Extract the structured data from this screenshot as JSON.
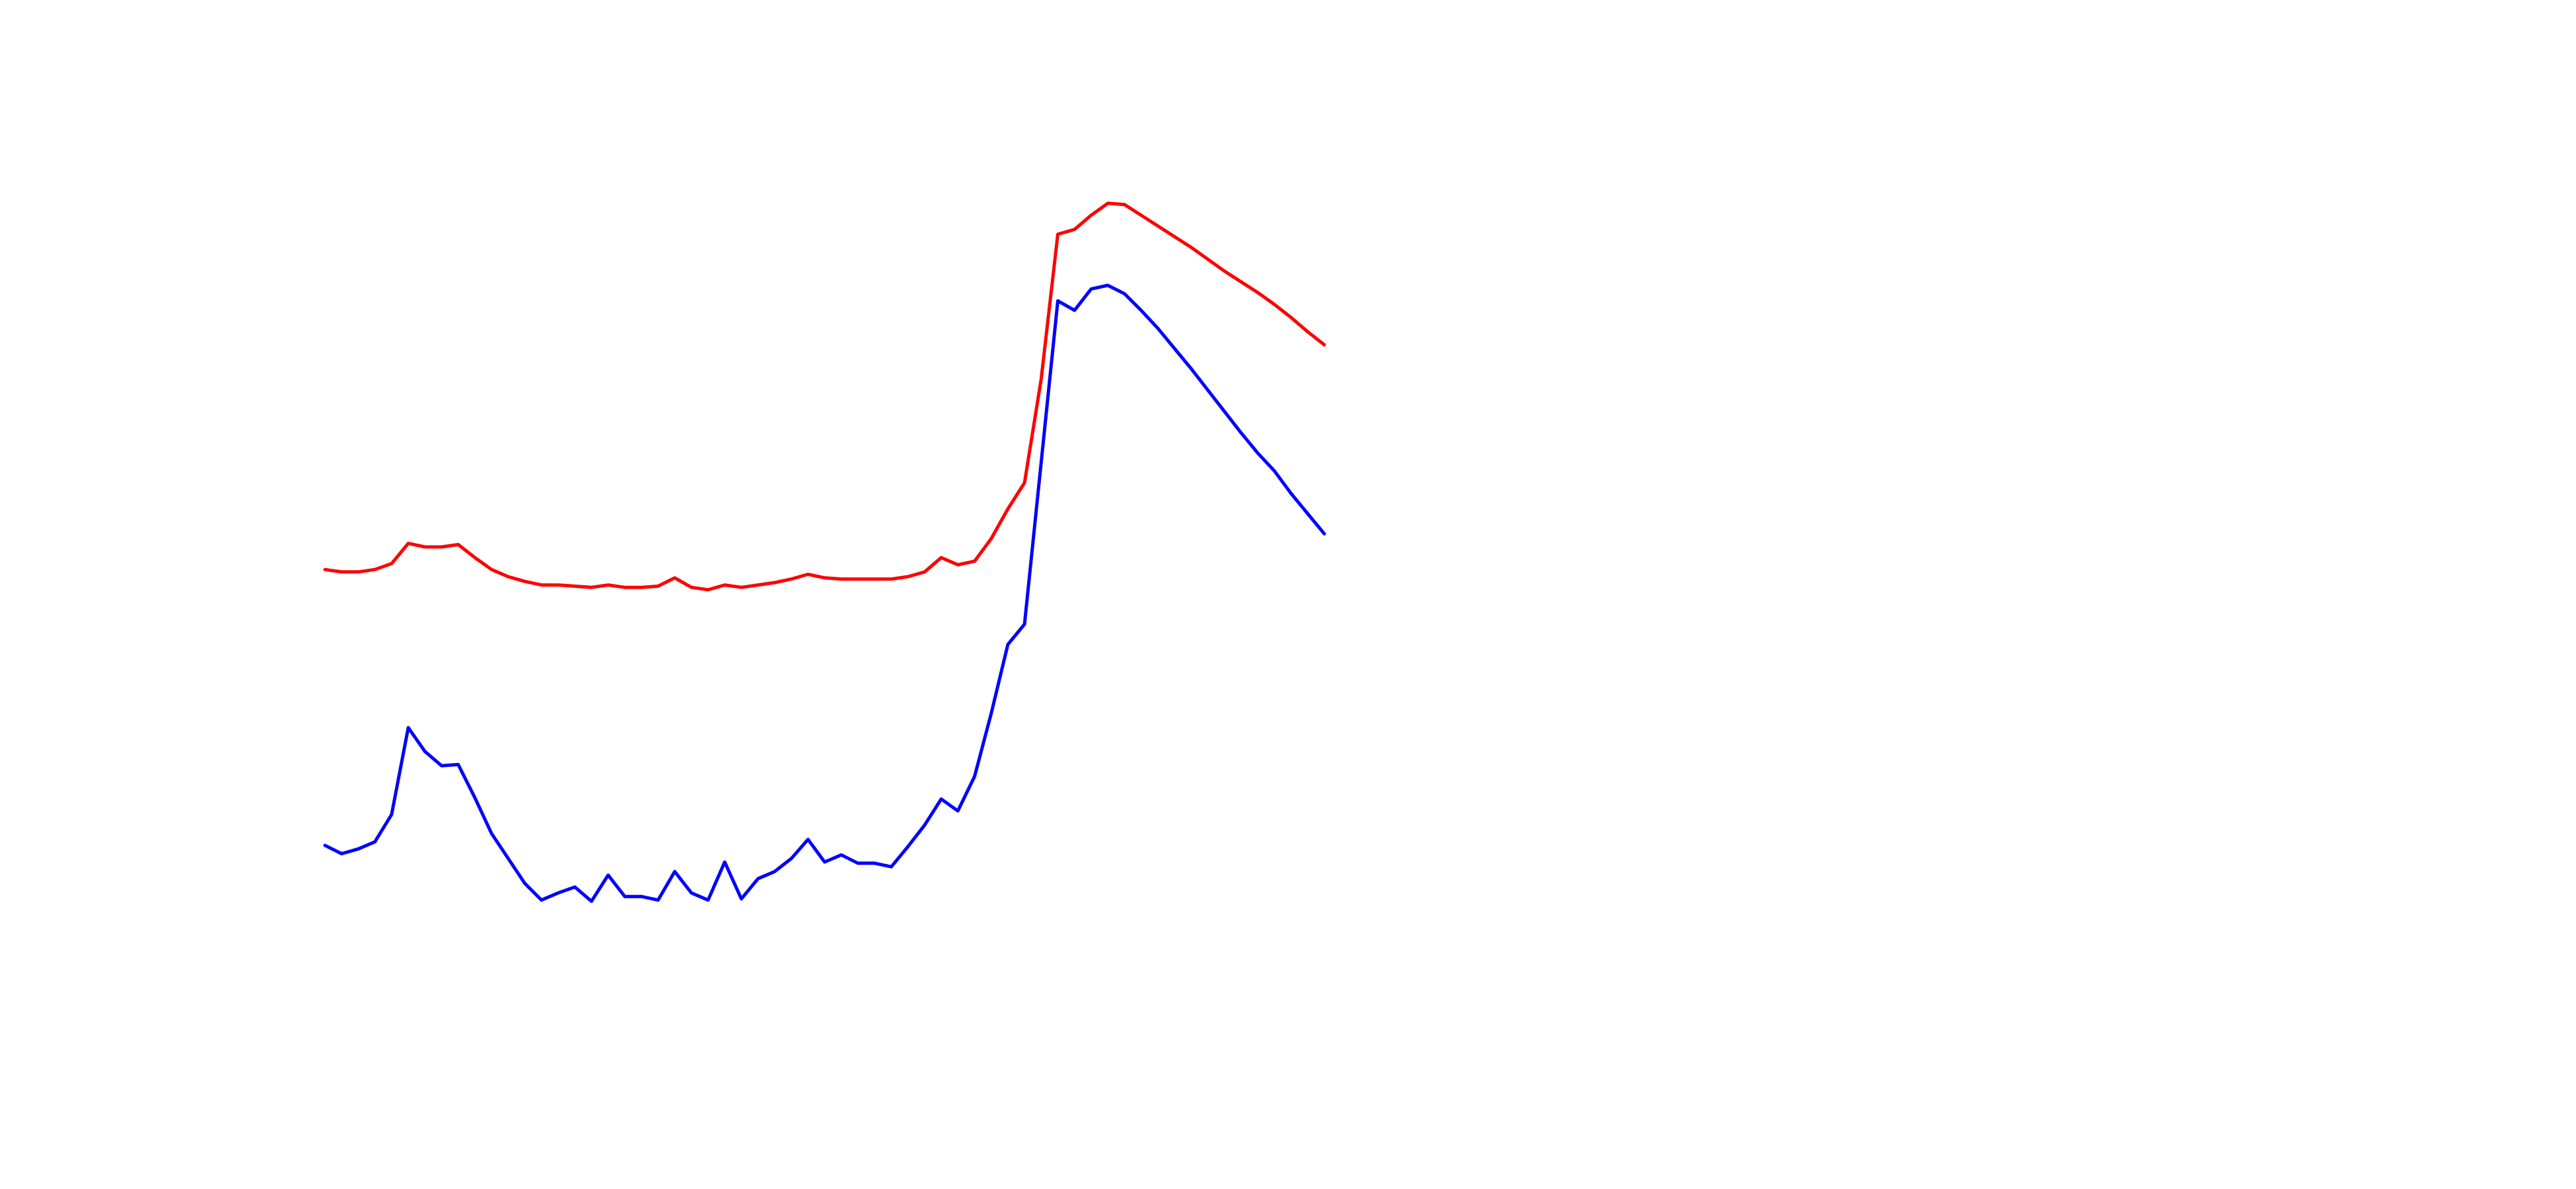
{
  "chart_data": {
    "type": "line",
    "ylim": [
      0,
      100
    ],
    "series": [
      {
        "color": "#ff0000",
        "values": [
          52.1,
          51.9,
          51.9,
          52.1,
          52.6,
          54.3,
          54.0,
          54.0,
          54.2,
          53.1,
          52.1,
          51.5,
          51.1,
          50.8,
          50.8,
          50.7,
          50.6,
          50.8,
          50.6,
          50.6,
          50.7,
          51.4,
          50.6,
          50.4,
          50.8,
          50.6,
          50.8,
          51.0,
          51.3,
          51.7,
          51.4,
          51.3,
          51.3,
          51.3,
          51.3,
          51.5,
          51.9,
          53.1,
          52.5,
          52.8,
          54.7,
          57.2,
          59.4,
          68.1,
          80.3,
          80.7,
          81.9,
          82.9,
          82.8,
          81.9,
          81.0,
          80.1,
          79.2,
          78.2,
          77.2,
          76.3,
          75.4,
          74.4,
          73.3,
          72.1,
          71.0
        ]
      },
      {
        "color": "#0000ff",
        "values": [
          28.9,
          28.2,
          28.6,
          29.2,
          31.5,
          38.8,
          36.8,
          35.6,
          35.7,
          32.9,
          29.9,
          27.8,
          25.7,
          24.3,
          24.9,
          25.4,
          24.2,
          26.4,
          24.6,
          24.6,
          24.3,
          26.7,
          24.9,
          24.3,
          27.5,
          24.4,
          26.1,
          26.7,
          27.8,
          29.4,
          27.5,
          28.1,
          27.4,
          27.4,
          27.1,
          28.8,
          30.6,
          32.8,
          31.8,
          34.7,
          40.0,
          45.8,
          47.5,
          61.1,
          74.7,
          73.9,
          75.7,
          76.0,
          75.3,
          73.9,
          72.4,
          70.7,
          69.0,
          67.2,
          65.4,
          63.6,
          61.9,
          60.4,
          58.5,
          56.8,
          55.1
        ]
      }
    ]
  }
}
